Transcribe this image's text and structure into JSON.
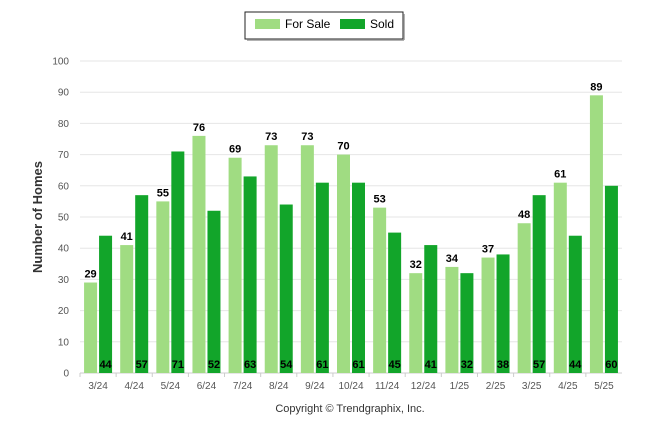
{
  "chart_data": {
    "type": "bar",
    "categories": [
      "3/24",
      "4/24",
      "5/24",
      "6/24",
      "7/24",
      "8/24",
      "9/24",
      "10/24",
      "11/24",
      "12/24",
      "1/25",
      "2/25",
      "3/25",
      "4/25",
      "5/25"
    ],
    "series": [
      {
        "name": "For Sale",
        "color": "#a0dc82",
        "values": [
          29,
          41,
          55,
          76,
          69,
          73,
          73,
          70,
          53,
          32,
          34,
          37,
          48,
          61,
          89
        ]
      },
      {
        "name": "Sold",
        "color": "#12a52a",
        "values": [
          44,
          57,
          71,
          52,
          63,
          54,
          61,
          61,
          45,
          41,
          32,
          38,
          57,
          44,
          60
        ]
      }
    ],
    "ylabel": "Number of Homes",
    "ylim": [
      0,
      100
    ],
    "yticks": [
      0,
      10,
      20,
      30,
      40,
      50,
      60,
      70,
      80,
      90,
      100
    ],
    "grid": true,
    "legend": "top-center"
  },
  "credit": "Copyright © Trendgraphix, Inc."
}
